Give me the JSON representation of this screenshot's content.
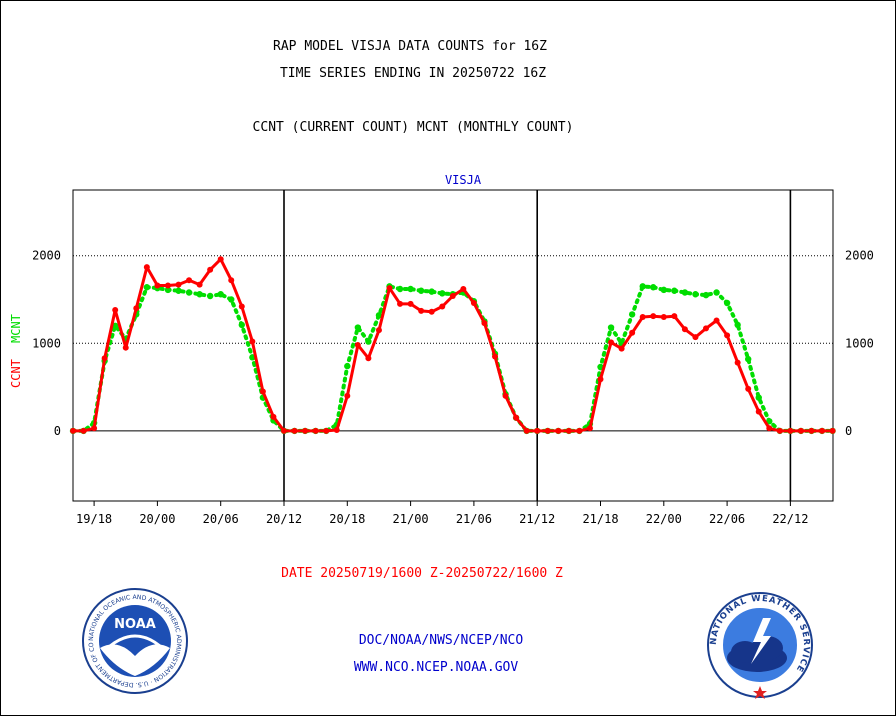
{
  "header": {
    "title_line1": "RAP MODEL VISJA DATA COUNTS for 16Z",
    "title_line2": "TIME SERIES ENDING IN 20250722 16Z",
    "subtitle": "CCNT (CURRENT COUNT) MCNT (MONTHLY COUNT)"
  },
  "footer": {
    "date_range": "DATE 20250719/1600 Z-20250722/1600 Z",
    "org": "DOC/NOAA/NWS/NCEP/NCO",
    "website": "WWW.NCO.NCEP.NOAA.GOV"
  },
  "logos": {
    "noaa_label": "NOAA",
    "noaa_ring_text": "NATIONAL OCEANIC AND ATMOSPHERIC ADMINISTRATION · U.S. DEPARTMENT OF COMMERCE ·",
    "nws_ring_text": "NATIONAL WEATHER SERVICE"
  },
  "colors": {
    "ccnt": "#ff0000",
    "mcnt": "#00dd00",
    "panel_title": "#0000cc",
    "date_text": "#ff0000",
    "footer_text": "#0000cc"
  },
  "chart_data": {
    "type": "line",
    "title": "VISJA",
    "ylabel_series": [
      "CCNT",
      "MCNT"
    ],
    "ylim": [
      -800,
      2750
    ],
    "yticks": [
      0,
      1000,
      2000
    ],
    "grid": "horizontal dotted at 1000 and 2000; solid at 0",
    "day_separators": [
      "20/12",
      "21/12",
      "22/12"
    ],
    "x_hours_from": "19/16",
    "xticks": [
      "19/18",
      "20/00",
      "20/06",
      "20/12",
      "20/18",
      "21/00",
      "21/06",
      "21/12",
      "21/18",
      "22/00",
      "22/06",
      "22/12"
    ],
    "series": [
      {
        "name": "CCNT",
        "x": [
          "19/16",
          "19/17",
          "19/18",
          "19/19",
          "19/20",
          "19/21",
          "19/22",
          "19/23",
          "20/00",
          "20/01",
          "20/02",
          "20/03",
          "20/04",
          "20/05",
          "20/06",
          "20/07",
          "20/08",
          "20/09",
          "20/10",
          "20/11",
          "20/12",
          "20/13",
          "20/14",
          "20/15",
          "20/16",
          "20/17",
          "20/18",
          "20/19",
          "20/20",
          "20/21",
          "20/22",
          "20/23",
          "21/00",
          "21/01",
          "21/02",
          "21/03",
          "21/04",
          "21/05",
          "21/06",
          "21/07",
          "21/08",
          "21/09",
          "21/10",
          "21/11",
          "21/12",
          "21/13",
          "21/14",
          "21/15",
          "21/16",
          "21/17",
          "21/18",
          "21/19",
          "21/20",
          "21/21",
          "21/22",
          "21/23",
          "22/00",
          "22/01",
          "22/02",
          "22/03",
          "22/04",
          "22/05",
          "22/06",
          "22/07",
          "22/08",
          "22/09",
          "22/10",
          "22/11",
          "22/12",
          "22/13",
          "22/14",
          "22/15",
          "22/16"
        ],
        "values": [
          0,
          0,
          30,
          830,
          1380,
          950,
          1400,
          1870,
          1660,
          1660,
          1670,
          1720,
          1670,
          1840,
          1960,
          1720,
          1420,
          1020,
          450,
          160,
          0,
          0,
          0,
          0,
          0,
          10,
          400,
          980,
          830,
          1150,
          1630,
          1450,
          1450,
          1370,
          1360,
          1420,
          1540,
          1620,
          1460,
          1230,
          850,
          400,
          150,
          0,
          0,
          0,
          0,
          0,
          0,
          30,
          590,
          1010,
          940,
          1120,
          1300,
          1310,
          1300,
          1310,
          1160,
          1070,
          1170,
          1260,
          1090,
          780,
          480,
          220,
          30,
          0,
          0,
          0,
          0,
          0,
          0
        ]
      },
      {
        "name": "MCNT",
        "x": [
          "19/16",
          "19/17",
          "19/18",
          "19/19",
          "19/20",
          "19/21",
          "19/22",
          "19/23",
          "20/00",
          "20/01",
          "20/02",
          "20/03",
          "20/04",
          "20/05",
          "20/06",
          "20/07",
          "20/08",
          "20/09",
          "20/10",
          "20/11",
          "20/12",
          "20/13",
          "20/14",
          "20/15",
          "20/16",
          "20/17",
          "20/18",
          "20/19",
          "20/20",
          "20/21",
          "20/22",
          "20/23",
          "21/00",
          "21/01",
          "21/02",
          "21/03",
          "21/04",
          "21/05",
          "21/06",
          "21/07",
          "21/08",
          "21/09",
          "21/10",
          "21/11",
          "21/12",
          "21/13",
          "21/14",
          "21/15",
          "21/16",
          "21/17",
          "21/18",
          "21/19",
          "21/20",
          "21/21",
          "21/22",
          "21/23",
          "22/00",
          "22/01",
          "22/02",
          "22/03",
          "22/04",
          "22/05",
          "22/06",
          "22/07",
          "22/08",
          "22/09",
          "22/10",
          "22/11",
          "22/12",
          "22/13",
          "22/14",
          "22/15",
          "22/16"
        ],
        "values": [
          0,
          0,
          90,
          800,
          1200,
          1050,
          1330,
          1640,
          1630,
          1610,
          1600,
          1580,
          1560,
          1540,
          1560,
          1500,
          1210,
          840,
          380,
          120,
          0,
          0,
          0,
          0,
          0,
          70,
          740,
          1180,
          1020,
          1320,
          1650,
          1620,
          1620,
          1600,
          1590,
          1570,
          1560,
          1580,
          1480,
          1250,
          880,
          420,
          150,
          0,
          0,
          0,
          0,
          0,
          0,
          80,
          730,
          1180,
          1000,
          1330,
          1650,
          1640,
          1610,
          1600,
          1580,
          1560,
          1550,
          1580,
          1460,
          1210,
          820,
          380,
          110,
          0,
          0,
          0,
          0,
          0,
          0
        ]
      }
    ]
  }
}
